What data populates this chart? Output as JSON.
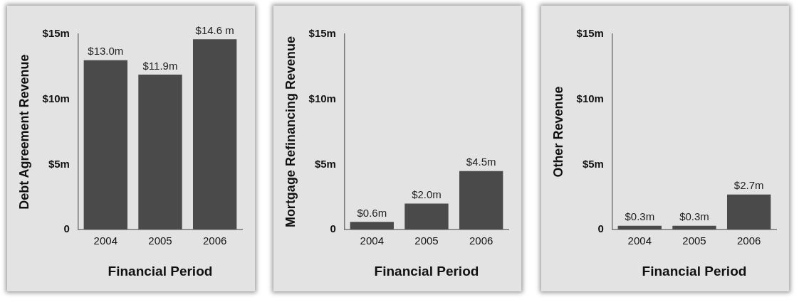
{
  "chart_data": [
    {
      "type": "bar",
      "xlabel": "Financial Period",
      "ylabel": "Debt Agreement Revenue",
      "categories": [
        "2004",
        "2005",
        "2006"
      ],
      "color": "#4a4a4a",
      "values": [
        13.0,
        11.9,
        14.6
      ],
      "value_labels": [
        "$13.0m",
        "$11.9m",
        "$14.6 m"
      ],
      "ylim": [
        0,
        15
      ],
      "yticks": [
        {
          "value": 0,
          "label": "0"
        },
        {
          "value": 5,
          "label": "$5m"
        },
        {
          "value": 10,
          "label": "$10m"
        },
        {
          "value": 15,
          "label": "$15m"
        }
      ],
      "grid": false,
      "legend": false
    },
    {
      "type": "bar",
      "xlabel": "Financial Period",
      "ylabel": "Mortgage Refinancing Revenue",
      "categories": [
        "2004",
        "2005",
        "2006"
      ],
      "color": "#4a4a4a",
      "values": [
        0.6,
        2.0,
        4.5
      ],
      "value_labels": [
        "$0.6m",
        "$2.0m",
        "$4.5m"
      ],
      "ylim": [
        0,
        15
      ],
      "yticks": [
        {
          "value": 0,
          "label": "0"
        },
        {
          "value": 5,
          "label": "$5m"
        },
        {
          "value": 10,
          "label": "$10m"
        },
        {
          "value": 15,
          "label": "$15m"
        }
      ],
      "grid": false,
      "legend": false
    },
    {
      "type": "bar",
      "xlabel": "Financial Period",
      "ylabel": "Other Revenue",
      "categories": [
        "2004",
        "2005",
        "2006"
      ],
      "color": "#4a4a4a",
      "values": [
        0.3,
        0.3,
        2.7
      ],
      "value_labels": [
        "$0.3m",
        "$0.3m",
        "$2.7m"
      ],
      "ylim": [
        0,
        15
      ],
      "yticks": [
        {
          "value": 0,
          "label": "0"
        },
        {
          "value": 5,
          "label": "$5m"
        },
        {
          "value": 10,
          "label": "$10m"
        },
        {
          "value": 15,
          "label": "$15m"
        }
      ],
      "grid": false,
      "legend": false
    }
  ]
}
